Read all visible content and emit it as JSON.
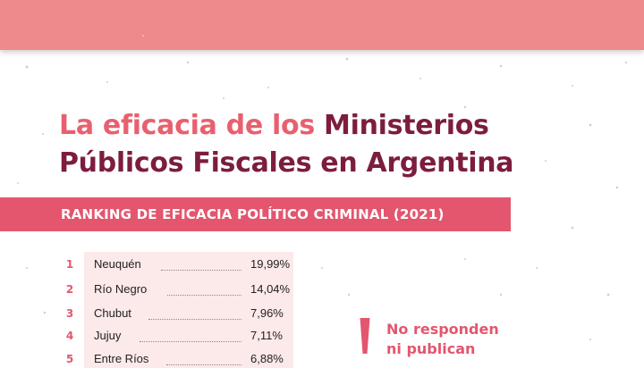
{
  "title": {
    "part1": "La eficacia de los ",
    "part2": "Ministerios",
    "part3": "Públicos Fiscales en Argentina"
  },
  "ribbon": {
    "text": "RANKING DE EFICACIA POLÍTICO CRIMINAL (2021)"
  },
  "ranking": [
    {
      "rank": "1",
      "province": "Neuquén",
      "value": "19,99%"
    },
    {
      "rank": "2",
      "province": "Río Negro",
      "value": "14,04%"
    },
    {
      "rank": "3",
      "province": "Chubut",
      "value": "7,96%"
    },
    {
      "rank": "4",
      "province": "Jujuy",
      "value": "7,11%"
    },
    {
      "rank": "5",
      "province": "Entre Ríos",
      "value": "6,88%"
    }
  ],
  "no_responden": {
    "line1": "No responden",
    "line2": "ni publican"
  },
  "colors": {
    "top_band": "#ee8a8c",
    "accent": "#e3566e",
    "title_light": "#e8606f",
    "title_dark": "#7c1d3f",
    "panel": "#fce9e9"
  }
}
